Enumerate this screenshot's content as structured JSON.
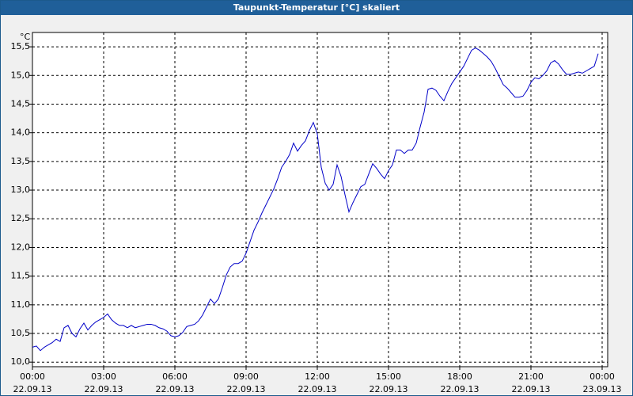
{
  "chart_data": {
    "type": "line",
    "title": "Taupunkt-Temperatur [°C] skaliert",
    "y_unit": "°C",
    "x": [
      0,
      10,
      20,
      30,
      40,
      50,
      60,
      70,
      80,
      90,
      100,
      110,
      120,
      130,
      140,
      150,
      160,
      170,
      180,
      190,
      200,
      210,
      220,
      230,
      240,
      250,
      260,
      270,
      280,
      290,
      300,
      310,
      320,
      330,
      340,
      350,
      360,
      370,
      380,
      390,
      400,
      410,
      420,
      430,
      440,
      450,
      460,
      470,
      480,
      490,
      500,
      510,
      520,
      530,
      540,
      550,
      560,
      570,
      580,
      590,
      600,
      610,
      620,
      630,
      640,
      650,
      660,
      670,
      680,
      690,
      700,
      710,
      720,
      730,
      740,
      750,
      760,
      770,
      780,
      790,
      800,
      810,
      820,
      830,
      840,
      850,
      860,
      870,
      880,
      890,
      900,
      910,
      920,
      930,
      940,
      950,
      960,
      970,
      980,
      990,
      1000,
      1010,
      1020,
      1030,
      1040,
      1050,
      1060,
      1070,
      1080,
      1090,
      1100,
      1110,
      1120,
      1130,
      1140,
      1150,
      1160,
      1170,
      1180,
      1190,
      1200,
      1210,
      1220,
      1230,
      1240,
      1250,
      1260,
      1270,
      1280,
      1290,
      1300,
      1310,
      1320,
      1330,
      1340,
      1350,
      1360,
      1370,
      1380,
      1390,
      1400,
      1410,
      1420,
      1430
    ],
    "series": [
      {
        "name": "Taupunkt-Temperatur",
        "color": "#0000c8",
        "values": [
          10.26,
          10.28,
          10.2,
          10.26,
          10.3,
          10.34,
          10.4,
          10.36,
          10.6,
          10.64,
          10.5,
          10.44,
          10.58,
          10.68,
          10.56,
          10.64,
          10.7,
          10.74,
          10.78,
          10.84,
          10.74,
          10.68,
          10.64,
          10.64,
          10.6,
          10.64,
          10.6,
          10.62,
          10.64,
          10.66,
          10.66,
          10.64,
          10.6,
          10.58,
          10.54,
          10.46,
          10.44,
          10.46,
          10.52,
          10.62,
          10.64,
          10.66,
          10.72,
          10.82,
          10.96,
          11.1,
          11.02,
          11.1,
          11.3,
          11.52,
          11.66,
          11.72,
          11.72,
          11.76,
          11.9,
          12.1,
          12.3,
          12.44,
          12.6,
          12.74,
          12.88,
          13.02,
          13.2,
          13.4,
          13.5,
          13.62,
          13.82,
          13.68,
          13.78,
          13.86,
          14.04,
          14.18,
          13.98,
          13.4,
          13.12,
          13.0,
          13.1,
          13.44,
          13.24,
          12.92,
          12.62,
          12.78,
          12.92,
          13.06,
          13.1,
          13.28,
          13.46,
          13.38,
          13.28,
          13.2,
          13.34,
          13.44,
          13.7,
          13.7,
          13.64,
          13.7,
          13.7,
          13.82,
          14.1,
          14.36,
          14.76,
          14.78,
          14.74,
          14.64,
          14.56,
          14.72,
          14.86,
          14.96,
          15.06,
          15.16,
          15.3,
          15.44,
          15.48,
          15.44,
          15.38,
          15.32,
          15.24,
          15.12,
          14.98,
          14.84,
          14.78,
          14.7,
          14.62,
          14.62,
          14.64,
          14.74,
          14.88,
          14.96,
          14.94,
          15.0,
          15.08,
          15.22,
          15.26,
          15.2,
          15.1,
          15.02,
          15.02,
          15.04,
          15.06,
          15.04,
          15.08,
          15.12,
          15.16,
          15.38
        ]
      }
    ],
    "xlim": [
      0,
      1440
    ],
    "xticks": [
      {
        "value": 0,
        "label": "00:00",
        "date": "22.09.13"
      },
      {
        "value": 180,
        "label": "03:00",
        "date": "22.09.13"
      },
      {
        "value": 360,
        "label": "06:00",
        "date": "22.09.13"
      },
      {
        "value": 540,
        "label": "09:00",
        "date": "22.09.13"
      },
      {
        "value": 720,
        "label": "12:00",
        "date": "22.09.13"
      },
      {
        "value": 900,
        "label": "15:00",
        "date": "22.09.13"
      },
      {
        "value": 1080,
        "label": "18:00",
        "date": "22.09.13"
      },
      {
        "value": 1260,
        "label": "21:00",
        "date": "22.09.13"
      },
      {
        "value": 1440,
        "label": "00:00",
        "date": "23.09.13"
      }
    ],
    "ylim": [
      9.92,
      15.75
    ],
    "yticks": [
      {
        "value": 10,
        "label": "10,0"
      },
      {
        "value": 10.5,
        "label": "10,5"
      },
      {
        "value": 11,
        "label": "11,0"
      },
      {
        "value": 11.5,
        "label": "11,5"
      },
      {
        "value": 12,
        "label": "12,0"
      },
      {
        "value": 12.5,
        "label": "12,5"
      },
      {
        "value": 13,
        "label": "13,0"
      },
      {
        "value": 13.5,
        "label": "13,5"
      },
      {
        "value": 14,
        "label": "14,0"
      },
      {
        "value": 14.5,
        "label": "14,5"
      },
      {
        "value": 15,
        "label": "15,0"
      },
      {
        "value": 15.5,
        "label": "15,5"
      }
    ],
    "grid": true
  }
}
